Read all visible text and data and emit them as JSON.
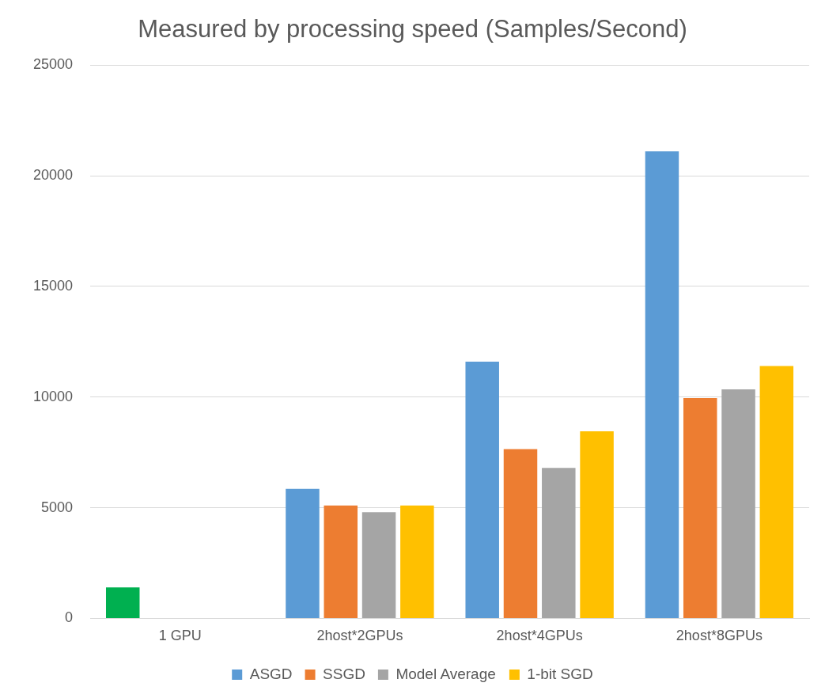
{
  "chart_data": {
    "type": "bar",
    "title": "Measured by processing speed (Samples/Second)",
    "categories": [
      "1 GPU",
      "2host*2GPUs",
      "2host*4GPUs",
      "2host*8GPUs"
    ],
    "series": [
      {
        "name": "ASGD",
        "color": "#5b9bd5",
        "colors": [
          "#00b050",
          "#5b9bd5",
          "#5b9bd5",
          "#5b9bd5"
        ],
        "values": [
          1400,
          5850,
          11600,
          21100
        ]
      },
      {
        "name": "SSGD",
        "color": "#ed7d31",
        "values": [
          null,
          5100,
          7650,
          9950
        ]
      },
      {
        "name": "Model Average",
        "color": "#a5a5a5",
        "values": [
          null,
          4800,
          6800,
          10350
        ]
      },
      {
        "name": "1-bit SGD",
        "color": "#ffc000",
        "values": [
          null,
          5100,
          8450,
          11400
        ]
      }
    ],
    "ylim": [
      0,
      25000
    ],
    "yticks": [
      0,
      5000,
      10000,
      15000,
      20000,
      25000
    ],
    "grid": "y",
    "legend": "bottom"
  }
}
